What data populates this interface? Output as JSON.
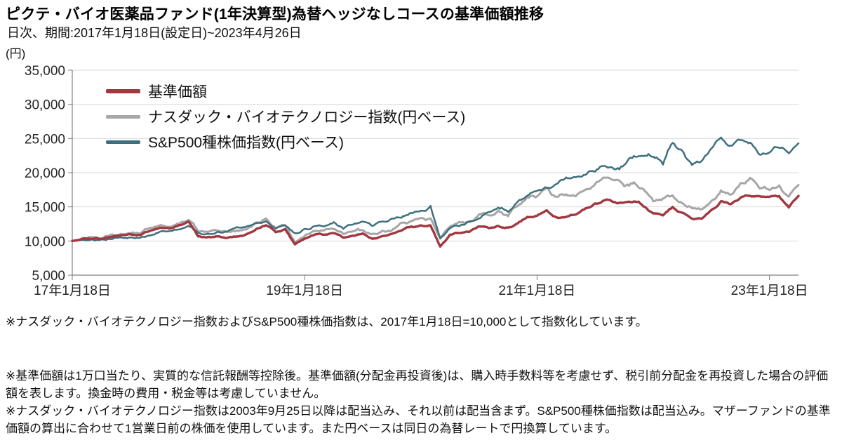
{
  "header": {
    "title": "ピクテ・バイオ医薬品ファンド(1年決算型)為替ヘッジなしコースの基準価額推移",
    "subtitle": "日次、期間:2017年1月18日(設定日)~2023年4月26日",
    "unit_label": "(円)"
  },
  "legend": [
    {
      "label": "基準価額",
      "color": "#a23740",
      "swatch_h": 6
    },
    {
      "label": "ナスダック・バイオテクノロジー指数(円ベース)",
      "color": "#a6a6a6",
      "swatch_h": 5
    },
    {
      "label": "S&P500種株価指数(円ベース)",
      "color": "#3e6f7d",
      "swatch_h": 5
    }
  ],
  "footnotes": {
    "index_note": "※ナスダック・バイオテクノロジー指数およびS&P500種株価指数は、2017年1月18日=10,000として指数化しています。",
    "nav_note": "※基準価額は1万口当たり、実質的な信託報酬等控除後。基準価額(分配金再投資後)は、購入時手数料等を考慮せず、税引前分配金を再投資した場合の評価額を表します。換金時の費用・税金等は考慮していません。",
    "calc_note": "※ナスダック・バイオテクノロジー指数は2003年9月25日以降は配当込み、それ以前は配当含まず。S&P500種株価指数は配当込み。マザーファンドの基準価額の算出に合わせて1営業日前の株価を使用しています。また円ベースは同日の為替レートで円換算しています。"
  },
  "chart_data": {
    "type": "line",
    "title": "ピクテ・バイオ医薬品ファンド(1年決算型)為替ヘッジなしコースの基準価額推移",
    "subtitle": "日次、期間:2017年1月18日(設定日)~2023年4月26日",
    "ylabel": "(円)",
    "x_unit": "months since 2017-01-18 (daily series, monthly keypoints)",
    "period_start": "2017年1月18日",
    "period_end": "2023年4月26日",
    "index_base": "2017年1月18日=10,000",
    "ylim": [
      5000,
      35000
    ],
    "grid": "horizontal",
    "legend_position": "top-left-inside",
    "colors": {
      "grid": "#d9d9d9",
      "axis": "#7f7f7f",
      "tick_text": "#262626"
    },
    "y_ticks": [
      {
        "value": 35000,
        "label": "35,000"
      },
      {
        "value": 30000,
        "label": "30,000"
      },
      {
        "value": 25000,
        "label": "25,000"
      },
      {
        "value": 20000,
        "label": "20,000"
      },
      {
        "value": 15000,
        "label": "15,000"
      },
      {
        "value": 10000,
        "label": "10,000"
      },
      {
        "value": 5000,
        "label": "5,000"
      }
    ],
    "x_ticks": [
      {
        "month": 0,
        "label": "17年1月18日"
      },
      {
        "month": 24,
        "label": "19年1月18日"
      },
      {
        "month": 48,
        "label": "21年1月18日"
      },
      {
        "month": 72,
        "label": "23年1月18日"
      }
    ],
    "series": [
      {
        "id": "nav",
        "name": "基準価額",
        "color": "#a23740",
        "width": 3.4,
        "z": 3,
        "seed": 11,
        "amp_slow": 0.011,
        "amp_fast": 0.005,
        "values": [
          10000,
          10200,
          10350,
          10300,
          10600,
          10800,
          11000,
          10900,
          11600,
          11900,
          11800,
          12300,
          12800,
          10600,
          10500,
          10600,
          10500,
          10600,
          11000,
          11800,
          12400,
          11300,
          11600,
          9600,
          10400,
          11000,
          11000,
          11300,
          10500,
          10800,
          11100,
          10400,
          10700,
          11000,
          11700,
          12100,
          12300,
          12300,
          9200,
          10800,
          11300,
          11300,
          12100,
          12000,
          12200,
          11800,
          12700,
          13400,
          13700,
          14400,
          13400,
          13700,
          13900,
          14700,
          15300,
          15900,
          15800,
          15600,
          15900,
          15200,
          13900,
          13900,
          14900,
          14100,
          13300,
          13200,
          14400,
          15700,
          15300,
          16300,
          16800,
          16500,
          16300,
          16500,
          15000,
          16600
        ]
      },
      {
        "id": "nasdaq-biotech",
        "name": "ナスダック・バイオテクノロジー指数(円ベース)",
        "color": "#a6a6a6",
        "width": 3.0,
        "z": 1,
        "seed": 37,
        "amp_slow": 0.016,
        "amp_fast": 0.007,
        "values": [
          10000,
          10300,
          10500,
          10450,
          10800,
          11000,
          11300,
          11200,
          11900,
          12200,
          12100,
          12700,
          13200,
          11600,
          11500,
          11600,
          11400,
          11500,
          11900,
          12600,
          13300,
          12000,
          12400,
          9900,
          10800,
          11500,
          11400,
          11900,
          11000,
          11400,
          11700,
          11000,
          11300,
          11700,
          12500,
          12900,
          13200,
          13300,
          10600,
          12100,
          12700,
          12600,
          13800,
          13900,
          14300,
          13800,
          15200,
          16200,
          16700,
          17700,
          16300,
          16900,
          16500,
          17400,
          18300,
          19100,
          18900,
          18400,
          18500,
          17300,
          15900,
          16200,
          16600,
          15500,
          14900,
          14500,
          15800,
          17200,
          16600,
          18300,
          19200,
          17800,
          17500,
          17900,
          16700,
          18200
        ]
      },
      {
        "id": "sp500",
        "name": "S&P500種株価指数(円ベース)",
        "color": "#3e6f7d",
        "width": 2.5,
        "z": 2,
        "seed": 71,
        "amp_slow": 0.014,
        "amp_fast": 0.006,
        "values": [
          10000,
          10250,
          10200,
          10150,
          10400,
          10500,
          10550,
          10500,
          10800,
          11200,
          11500,
          11600,
          12100,
          11300,
          11000,
          11200,
          11500,
          11900,
          12100,
          12500,
          12900,
          12000,
          12300,
          11000,
          11600,
          12100,
          12300,
          12700,
          11900,
          12500,
          12800,
          12400,
          12800,
          13100,
          13600,
          14000,
          14300,
          15000,
          10200,
          11900,
          12400,
          12800,
          13100,
          14200,
          14900,
          14300,
          15800,
          16700,
          17300,
          17800,
          18300,
          19100,
          19300,
          19800,
          20300,
          20900,
          20400,
          21400,
          22200,
          22600,
          22500,
          21500,
          24300,
          23000,
          21200,
          21800,
          23500,
          25200,
          23600,
          24900,
          24500,
          22400,
          23100,
          23900,
          22900,
          24300
        ]
      }
    ]
  }
}
